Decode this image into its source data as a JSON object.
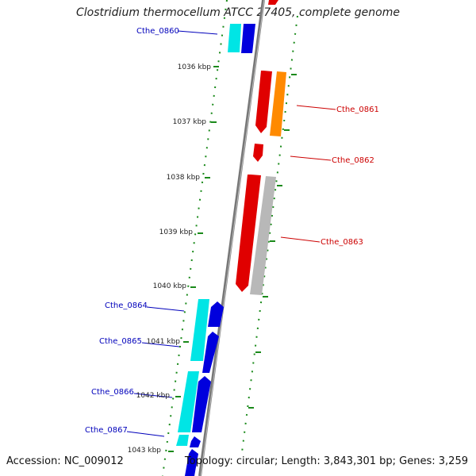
{
  "title": "Clostridium thermocellum ATCC 27405, complete genome",
  "footer": {
    "accession": "Accession: NC_009012",
    "summary": "Topology: circular; Length: 3,843,301 bp; Genes: 3,259"
  },
  "colors": {
    "forward_dark": "#e00000",
    "forward_light": "#ff8a00",
    "forward_grey": "#b8b8b8",
    "reverse_dark": "#0000dd",
    "reverse_light": "#00e5e5",
    "label_forward": "#cc0000",
    "label_reverse": "#0000bb",
    "ruler": "#1a8a1a",
    "backbone": "#888888"
  },
  "scale_labels": [
    "1036 kbp",
    "1037 kbp",
    "1038 kbp",
    "1039 kbp",
    "1040 kbp",
    "1041 kbp",
    "1042 kbp",
    "1043 kbp"
  ],
  "gene_labels_forward": [
    "Cthe_0861",
    "Cthe_0862",
    "Cthe_0863"
  ],
  "gene_labels_reverse": [
    "Cthe_0860",
    "Cthe_0864",
    "Cthe_0865",
    "Cthe_0866",
    "Cthe_0867"
  ]
}
